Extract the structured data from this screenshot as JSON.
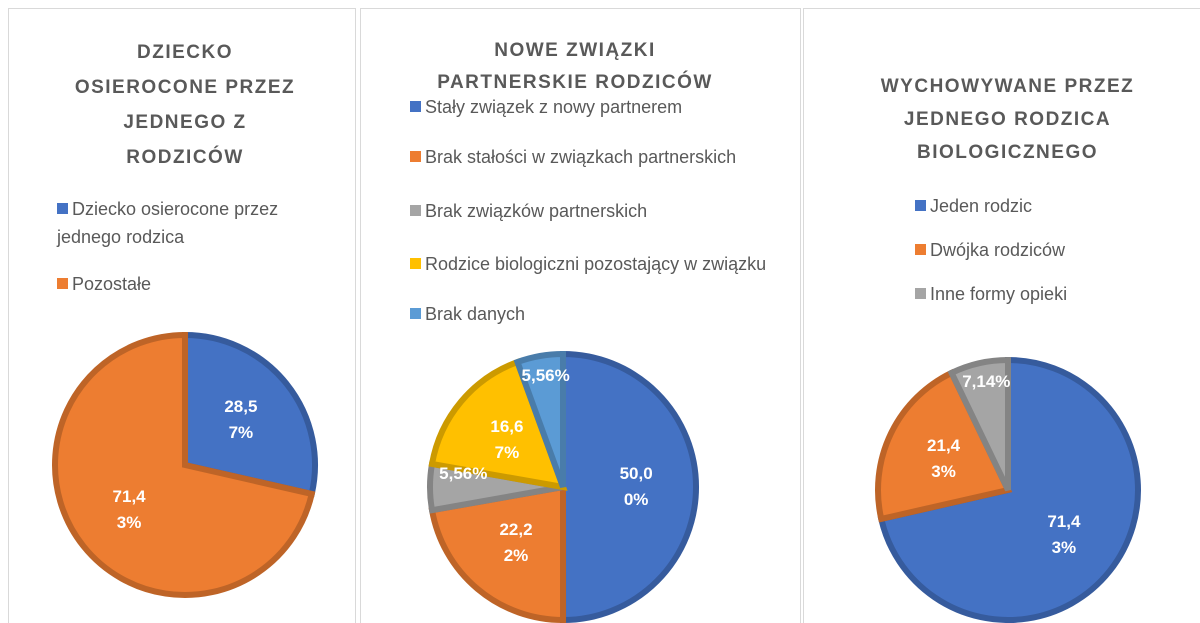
{
  "chart_data": [
    {
      "type": "pie",
      "title": "DZIECKO OSIEROCONE PRZEZ JEDNEGO Z RODZICÓW",
      "categories": [
        "Dziecko osierocone przez jednego rodzica",
        "Pozostałe"
      ],
      "values": [
        28.57,
        71.43
      ],
      "value_labels": [
        "28,57%",
        "71,43%"
      ],
      "colors": [
        "#4472c4",
        "#ed7d31"
      ]
    },
    {
      "type": "pie",
      "title": "NOWE ZWIĄZKI PARTNERSKIE RODZICÓW",
      "categories": [
        "Stały związek z nowy partnerem",
        "Brak stałości w związkach partnerskich",
        "Brak związków partnerskich",
        "Rodzice biologiczni pozostający w związku",
        "Brak danych"
      ],
      "values": [
        50.0,
        22.22,
        5.56,
        16.67,
        5.56
      ],
      "value_labels": [
        "50,00%",
        "22,22%",
        "5,56%",
        "16,67%",
        "5,56%"
      ],
      "colors": [
        "#4472c4",
        "#ed7d31",
        "#a5a5a5",
        "#ffc000",
        "#5b9bd5"
      ]
    },
    {
      "type": "pie",
      "title": "WYCHOWYWANE PRZEZ JEDNEGO RODZICA BIOLOGICZNEGO",
      "categories": [
        "Jeden rodzic",
        "Dwójka rodziców",
        "Inne formy opieki"
      ],
      "values": [
        71.43,
        21.43,
        7.14
      ],
      "value_labels": [
        "71,43%",
        "21,43%",
        "7,14%"
      ],
      "colors": [
        "#4472c4",
        "#ed7d31",
        "#a5a5a5"
      ]
    }
  ]
}
